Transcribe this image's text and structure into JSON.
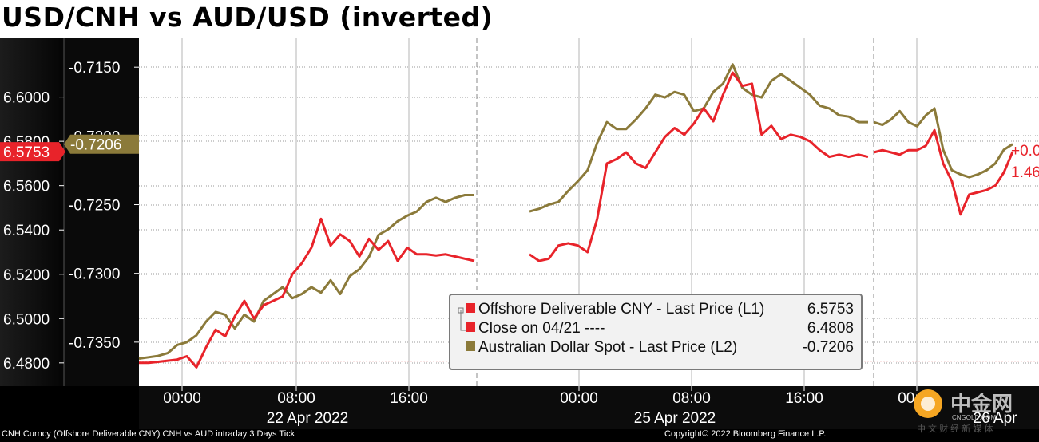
{
  "title": "USD/CNH vs AUD/USD (inverted)",
  "footer": {
    "left": "CNH Curncy (Offshore Deliverable CNY) CNH vs AUD intraday 3 Days  Tick",
    "right": "Copyright© 2022 Bloomberg Finance L.P."
  },
  "watermark": {
    "text": "中金网",
    "sub": "CNGOLD.COM",
    "tagline": "中 文 财 经 新 媒 体"
  },
  "colors": {
    "cnh": "#e8232a",
    "aud": "#8b7a3a",
    "grid": "#9a9a9a",
    "close_line": "#d13a3a",
    "panel": "#111111"
  },
  "chart_data": {
    "type": "line",
    "left_axis": {
      "ticks": [
        6.6,
        6.58,
        6.56,
        6.54,
        6.52,
        6.5,
        6.48
      ],
      "tick_labels": [
        "6.6000",
        "6.5800",
        "6.5600",
        "6.5400",
        "6.5200",
        "6.5000",
        "6.4800"
      ],
      "range": [
        6.4695,
        6.6265
      ],
      "last_label": "6.5753"
    },
    "right_axis": {
      "ticks": [
        -0.715,
        -0.72,
        -0.725,
        -0.73,
        -0.735
      ],
      "tick_labels": [
        "-0.7150",
        "-0.7200",
        "-0.7250",
        "-0.7300",
        "-0.7350"
      ],
      "range": [
        -0.7382,
        -0.7129
      ],
      "last_label": "-0.7206"
    },
    "x_ticks": [
      "00:00",
      "08:00",
      "16:00",
      "00:00",
      "08:00",
      "16:00",
      "00:00"
    ],
    "date_labels": [
      "22 Apr 2022",
      "25 Apr 2022",
      "26 Apr"
    ],
    "right_edge_labels": [
      "+0.0",
      "1.46"
    ],
    "series": [
      {
        "name": "Offshore Deliverable CNY - Last Price (L1)",
        "last": "6.5753",
        "values": [
          [
            6.48,
            6.48,
            6.4805,
            6.481,
            6.4815,
            6.483,
            6.478,
            6.487,
            6.495,
            6.492,
            6.501,
            6.508,
            6.5,
            6.506,
            6.508,
            6.51,
            6.52,
            6.525,
            6.532,
            6.545,
            6.533,
            6.538,
            6.535,
            6.528,
            6.536,
            6.531,
            6.535,
            6.526,
            6.532,
            6.529,
            6.529,
            6.5285,
            6.529,
            6.528,
            6.527,
            6.526
          ],
          [
            6.529,
            6.526,
            6.527,
            6.533,
            6.534,
            6.533,
            6.53,
            6.545,
            6.57,
            6.572,
            6.575,
            6.57,
            6.568,
            6.575,
            6.582,
            6.586,
            6.583,
            6.588,
            6.595,
            6.589,
            6.601,
            6.611,
            6.605,
            6.606,
            6.583,
            6.587,
            6.581,
            6.583,
            6.582,
            6.58,
            6.576,
            6.573,
            6.574,
            6.573,
            6.574,
            6.573
          ],
          [
            6.575,
            6.576,
            6.575,
            6.574,
            6.576,
            6.576,
            6.578,
            6.585,
            6.57,
            6.562,
            6.547,
            6.556,
            6.557,
            6.558,
            6.56,
            6.566,
            6.5753
          ]
        ]
      },
      {
        "name": "Close on 04/21 ----",
        "last": "6.4808",
        "value": 6.4808
      },
      {
        "name": "Australian Dollar Spot - Last Price (L2)",
        "last": "-0.7206",
        "values": [
          [
            -0.7362,
            -0.7361,
            -0.736,
            -0.7358,
            -0.7352,
            -0.735,
            -0.7345,
            -0.7335,
            -0.7328,
            -0.733,
            -0.734,
            -0.733,
            -0.7335,
            -0.732,
            -0.7315,
            -0.731,
            -0.7318,
            -0.7315,
            -0.731,
            -0.7314,
            -0.7305,
            -0.7315,
            -0.7302,
            -0.7297,
            -0.7288,
            -0.7272,
            -0.7268,
            -0.7262,
            -0.7258,
            -0.7255,
            -0.7248,
            -0.7245,
            -0.7248,
            -0.7245,
            -0.7243,
            -0.7243
          ],
          [
            -0.7255,
            -0.7253,
            -0.725,
            -0.7248,
            -0.724,
            -0.7233,
            -0.7225,
            -0.7205,
            -0.719,
            -0.7195,
            -0.7195,
            -0.7188,
            -0.718,
            -0.717,
            -0.7172,
            -0.7168,
            -0.717,
            -0.7182,
            -0.718,
            -0.7168,
            -0.7162,
            -0.7148,
            -0.7165,
            -0.717,
            -0.7172,
            -0.716,
            -0.7155,
            -0.716,
            -0.7165,
            -0.717,
            -0.7178,
            -0.718,
            -0.7185,
            -0.7186,
            -0.719,
            -0.719
          ],
          [
            -0.719,
            -0.7192,
            -0.7188,
            -0.7182,
            -0.719,
            -0.7193,
            -0.7185,
            -0.718,
            -0.721,
            -0.7225,
            -0.7228,
            -0.723,
            -0.7228,
            -0.7225,
            -0.722,
            -0.721,
            -0.7206
          ]
        ]
      }
    ]
  }
}
